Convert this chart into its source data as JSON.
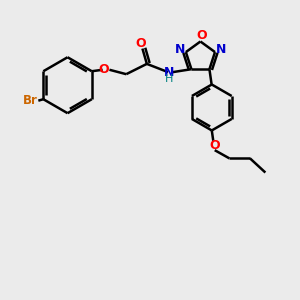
{
  "bg_color": "#ebebeb",
  "bond_color": "#000000",
  "bond_width": 1.8,
  "N_color": "#0000cc",
  "O_color": "#ff0000",
  "Br_color": "#cc6600",
  "H_color": "#008080",
  "figsize": [
    3.0,
    3.0
  ],
  "dpi": 100,
  "xlim": [
    0,
    10
  ],
  "ylim": [
    0,
    10
  ]
}
